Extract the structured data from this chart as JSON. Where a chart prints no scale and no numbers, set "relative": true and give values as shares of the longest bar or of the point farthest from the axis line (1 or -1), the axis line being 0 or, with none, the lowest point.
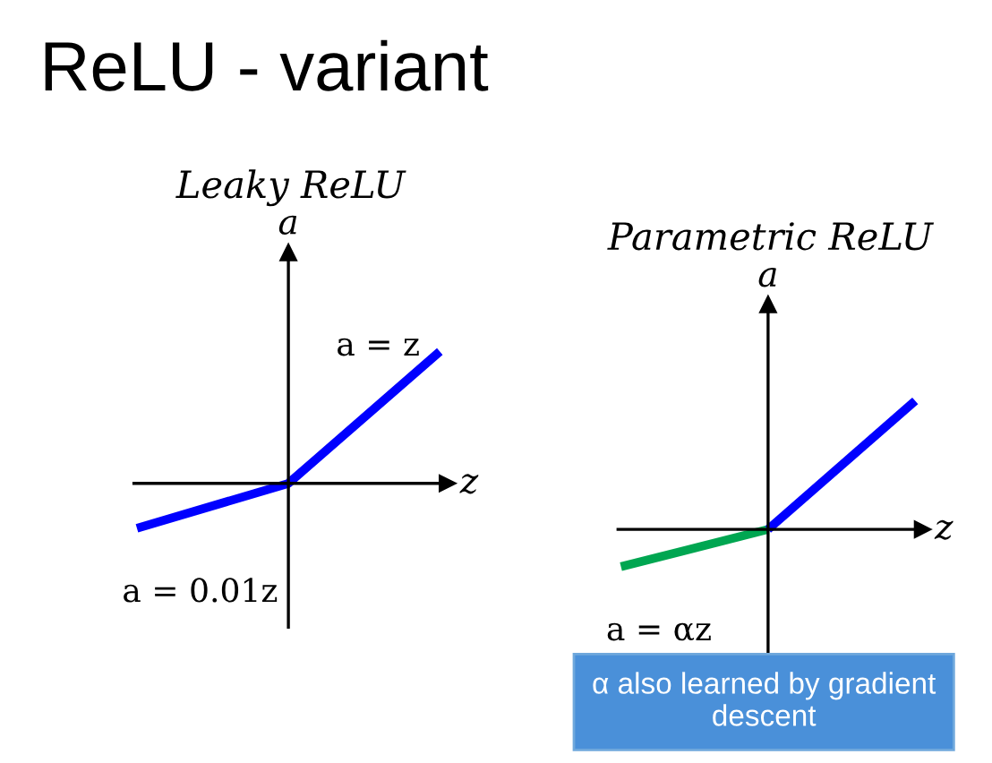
{
  "chart_data": [
    {
      "type": "line",
      "title": "Leaky ReLU",
      "xlabel": "z",
      "ylabel": "a",
      "relative": true,
      "categories": [
        null,
        null,
        null
      ],
      "series": [
        {
          "color": "#0000ff",
          "values": [
            -0.34,
            0,
            1
          ]
        }
      ],
      "annotations": [
        "ReLU - variant",
        "a = z",
        "a = 0.01z"
      ]
    },
    {
      "type": "line",
      "title": "Parametric ReLU",
      "xlabel": "z",
      "ylabel": "a",
      "relative": true,
      "categories": [
        null,
        null,
        null
      ],
      "series": [
        {
          "color": "#00a651",
          "values": [
            -0.29,
            0,
            null
          ]
        },
        {
          "color": "#0000ff",
          "values": [
            null,
            0,
            1
          ]
        }
      ],
      "annotations": [
        "a = αz",
        "α also learned by gradient descent"
      ]
    }
  ]
}
